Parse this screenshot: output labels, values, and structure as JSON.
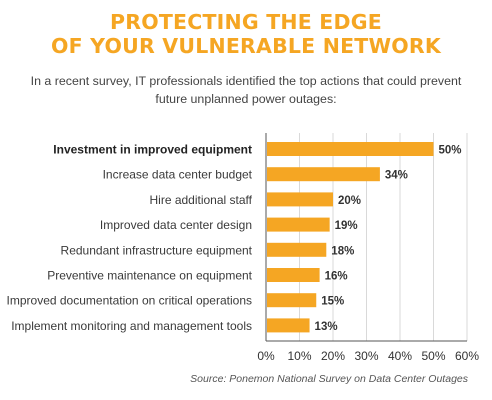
{
  "header": {
    "title_line1": "PROTECTING THE EDGE",
    "title_line2": "OF YOUR VULNERABLE NETWORK",
    "subtitle_line1": "In a recent survey, IT professionals identified the top actions that could prevent",
    "subtitle_line2": "future unplanned power outages:"
  },
  "source": "Source: Ponemon National Survey on Data Center Outages",
  "colors": {
    "title": "#f5a623",
    "bar": "#f5a623",
    "axis": "#555555",
    "grid": "#d9d9d9"
  },
  "chart_data": {
    "type": "bar",
    "orientation": "horizontal",
    "categories": [
      "Investment in improved equipment",
      "Increase data center budget",
      "Hire additional staff",
      "Improved data center design",
      "Redundant infrastructure equipment",
      "Preventive maintenance on equipment",
      "Improved documentation on critical operations",
      "Implement monitoring and management tools"
    ],
    "values": [
      50,
      34,
      20,
      19,
      18,
      16,
      15,
      13
    ],
    "value_labels": [
      "50%",
      "34%",
      "20%",
      "19%",
      "18%",
      "16%",
      "15%",
      "13%"
    ],
    "xlim": [
      0,
      60
    ],
    "xticks": [
      "0%",
      "10%",
      "20%",
      "30%",
      "40%",
      "50%",
      "60%"
    ],
    "highlighted_category_index": 0,
    "grid": true
  }
}
